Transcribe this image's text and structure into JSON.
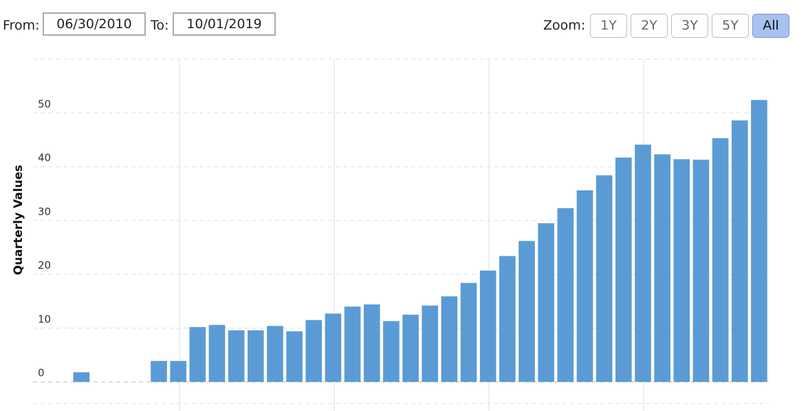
{
  "range_selector": {
    "from_label": "From:",
    "from": "06/30/2010",
    "to_label": "To:",
    "to": "10/01/2019",
    "zoom_label": "Zoom:",
    "zoom_buttons": [
      "1Y",
      "2Y",
      "3Y",
      "5Y",
      "All"
    ],
    "active_zoom": 4
  },
  "chart_data": {
    "type": "bar",
    "y_label": "Quarterly Values",
    "color": "#5b9bd5",
    "categories": [
      null,
      null,
      null,
      null,
      null,
      null,
      null,
      null,
      null,
      null,
      null,
      null,
      null,
      null,
      null,
      null,
      null,
      null,
      null,
      null,
      null,
      null,
      null,
      null,
      null,
      null,
      null,
      null,
      null,
      null,
      null,
      null,
      null,
      null,
      null,
      null,
      null,
      null
    ],
    "values": [
      null,
      null,
      1.8,
      null,
      null,
      null,
      3.9,
      3.9,
      10.2,
      10.6,
      9.6,
      9.6,
      10.4,
      9.4,
      11.5,
      12.7,
      14.0,
      14.4,
      11.3,
      12.5,
      14.2,
      15.9,
      18.4,
      20.7,
      23.4,
      26.2,
      29.5,
      32.3,
      35.6,
      38.4,
      41.7,
      44.1,
      42.3,
      41.4,
      41.3,
      45.3,
      48.6,
      52.4
    ],
    "ylim": [
      -4,
      60
    ],
    "yticks": [
      0,
      10,
      20,
      30,
      40,
      50
    ],
    "grid": true
  }
}
